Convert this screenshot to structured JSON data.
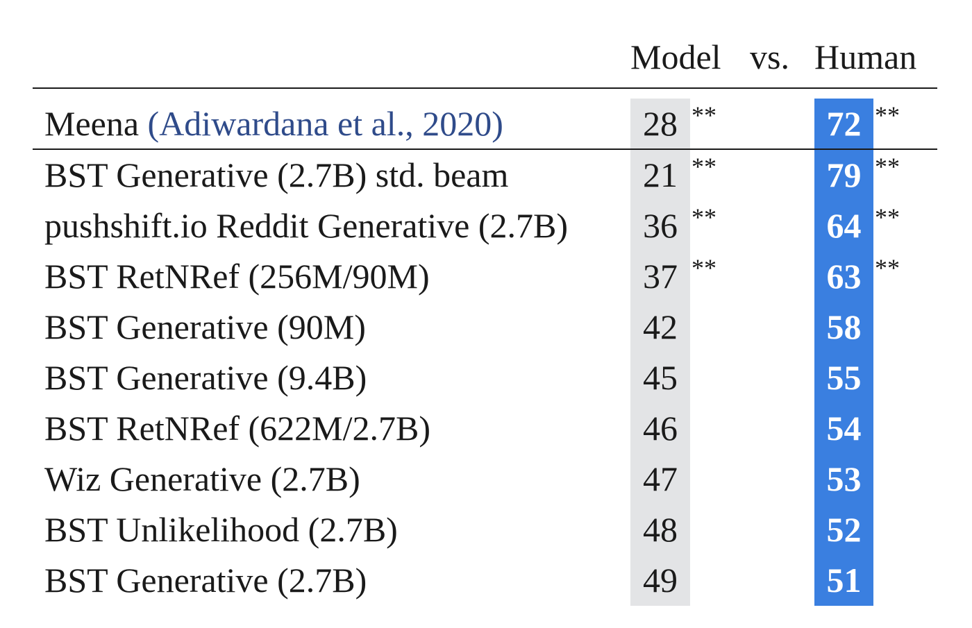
{
  "header": {
    "model": "Model",
    "vs": "vs.",
    "human": "Human"
  },
  "meena": {
    "name": "Meena",
    "cite": "(Adiwardana et al., 2020)",
    "model": "28",
    "model_sig": "**",
    "human": "72",
    "human_sig": "**"
  },
  "rows": [
    {
      "label": "BST Generative (2.7B) std. beam",
      "model": "21",
      "model_sig": "**",
      "human": "79",
      "human_sig": "**"
    },
    {
      "label": "pushshift.io Reddit Generative (2.7B)",
      "model": "36",
      "model_sig": "**",
      "human": "64",
      "human_sig": "**"
    },
    {
      "label": "BST RetNRef (256M/90M)",
      "model": "37",
      "model_sig": "**",
      "human": "63",
      "human_sig": "**"
    },
    {
      "label": "BST Generative (90M)",
      "model": "42",
      "model_sig": "",
      "human": "58",
      "human_sig": ""
    },
    {
      "label": "BST Generative (9.4B)",
      "model": "45",
      "model_sig": "",
      "human": "55",
      "human_sig": ""
    },
    {
      "label": "BST RetNRef (622M/2.7B)",
      "model": "46",
      "model_sig": "",
      "human": "54",
      "human_sig": ""
    },
    {
      "label": "Wiz Generative (2.7B)",
      "model": "47",
      "model_sig": "",
      "human": "53",
      "human_sig": ""
    },
    {
      "label": "BST Unlikelihood (2.7B)",
      "model": "48",
      "model_sig": "",
      "human": "52",
      "human_sig": ""
    },
    {
      "label": "BST Generative (2.7B)",
      "model": "49",
      "model_sig": "",
      "human": "51",
      "human_sig": ""
    }
  ]
}
